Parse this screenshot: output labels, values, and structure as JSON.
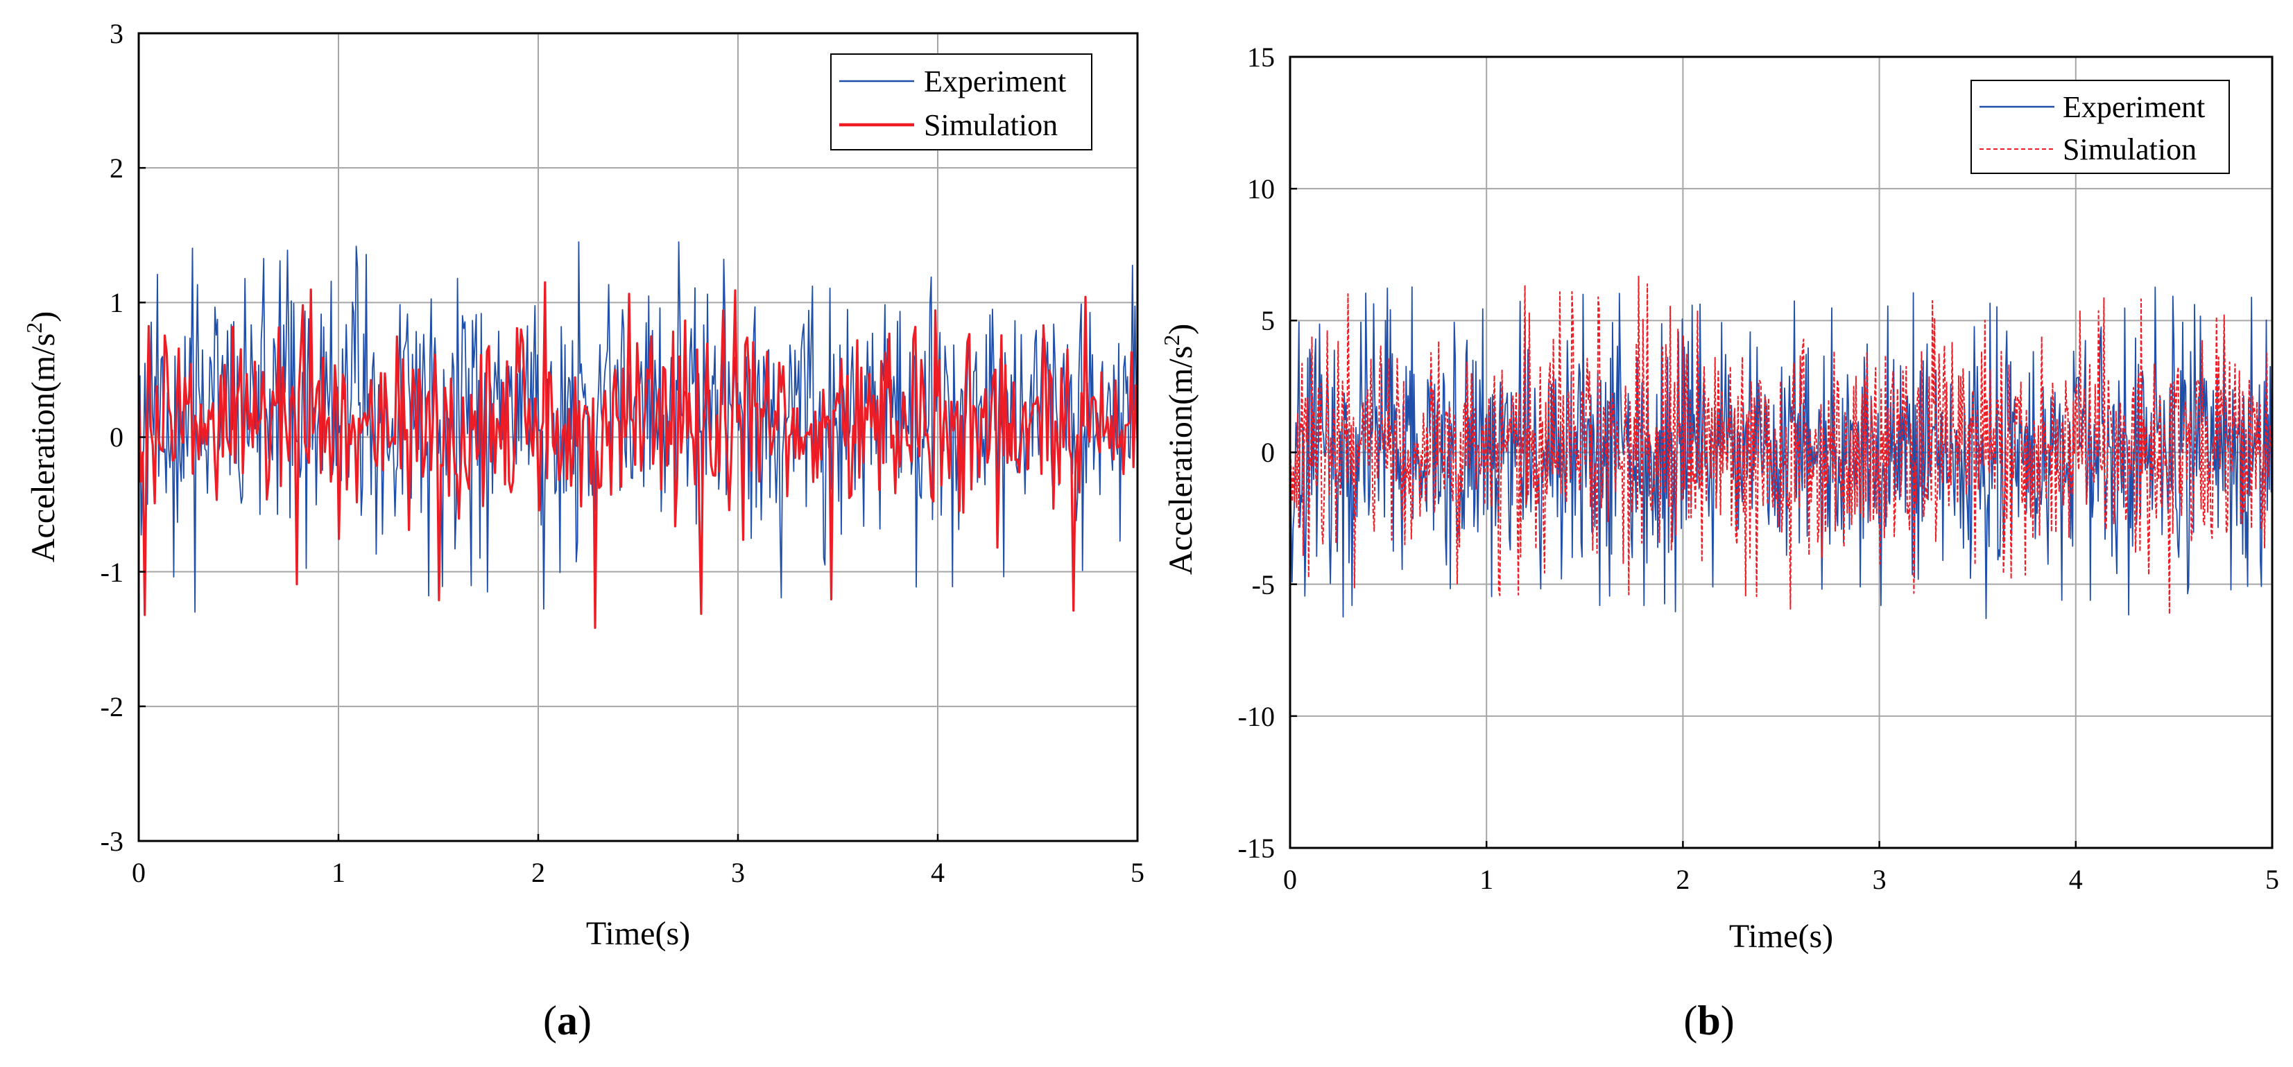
{
  "figure": {
    "captions": [
      {
        "open": "(",
        "letter": "a",
        "close": ")"
      },
      {
        "open": "(",
        "letter": "b",
        "close": ")"
      }
    ]
  },
  "colors": {
    "experiment": "#1f4fa8",
    "simulation": "#ee1c25",
    "grid": "#a6a6a6",
    "axis": "#000000"
  },
  "chart_data": [
    {
      "id": "a",
      "type": "line",
      "title": "",
      "xlabel": "Time(s)",
      "ylabel_main": "Acceleration(m/s",
      "ylabel_sup": "2",
      "ylabel_end": ")",
      "xlim": [
        0,
        5
      ],
      "ylim": [
        -3,
        3
      ],
      "xticks": [
        0,
        1,
        2,
        3,
        4,
        5
      ],
      "xtick_labels": [
        "0",
        "1",
        "2",
        "3",
        "4",
        "5"
      ],
      "yticks": [
        -3,
        -2,
        -1,
        0,
        1,
        2,
        3
      ],
      "ytick_labels": [
        "-3",
        "-2",
        "-1",
        "0",
        "1",
        "2",
        "3"
      ],
      "grid": true,
      "legend_position": "top-right",
      "series": [
        {
          "name": "Experiment",
          "style": "solid-thin",
          "color": "#1f4fa8",
          "n_points": 800,
          "mean": 0.2,
          "amplitude": 0.42,
          "max": 1.45,
          "min": -1.3,
          "seed": 11
        },
        {
          "name": "Simulation",
          "style": "solid-thick",
          "color": "#ee1c25",
          "n_points": 500,
          "mean": 0.1,
          "amplitude": 0.34,
          "max": 1.15,
          "min": -1.42,
          "seed": 29
        }
      ]
    },
    {
      "id": "b",
      "type": "line",
      "title": "",
      "xlabel": "Time(s)",
      "ylabel_main": "Acceleration(m/s",
      "ylabel_sup": "2",
      "ylabel_end": ")",
      "xlim": [
        0,
        5
      ],
      "ylim": [
        -15,
        15
      ],
      "xticks": [
        0,
        1,
        2,
        3,
        4,
        5
      ],
      "xtick_labels": [
        "0",
        "1",
        "2",
        "3",
        "4",
        "5"
      ],
      "yticks": [
        -15,
        -10,
        -5,
        0,
        5,
        10,
        15
      ],
      "ytick_labels": [
        "-15",
        "-10",
        "-5",
        "0",
        "5",
        "10",
        "15"
      ],
      "grid": true,
      "legend_position": "top-right",
      "series": [
        {
          "name": "Experiment",
          "style": "solid-thin",
          "color": "#1f4fa8",
          "n_points": 1000,
          "mean": 0.0,
          "amplitude": 2.1,
          "max": 6.3,
          "min": -6.3,
          "seed": 47
        },
        {
          "name": "Simulation",
          "style": "dashed-thin",
          "color": "#ee1c25",
          "n_points": 900,
          "mean": 0.3,
          "amplitude": 2.0,
          "max": 6.7,
          "min": -6.2,
          "seed": 83
        }
      ]
    }
  ]
}
